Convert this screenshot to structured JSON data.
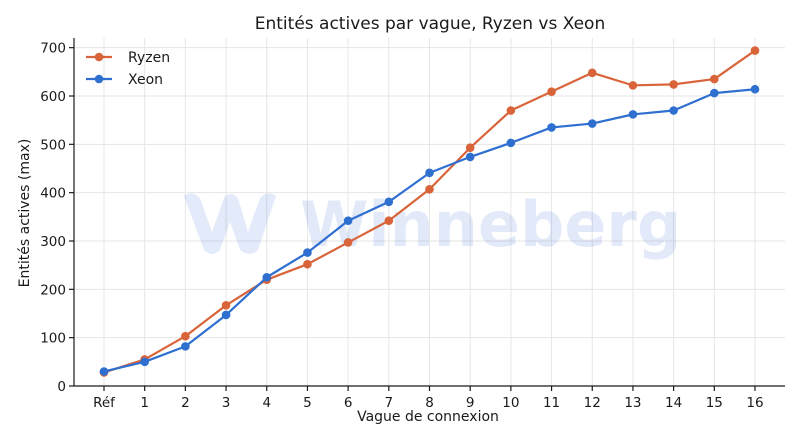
{
  "chart_data": {
    "type": "line",
    "title": "Entités actives par vague, Ryzen vs Xeon",
    "xlabel": "Vague de connexion",
    "ylabel": "Entités actives (max)",
    "categories": [
      "Réf",
      "1",
      "2",
      "3",
      "4",
      "5",
      "6",
      "7",
      "8",
      "9",
      "10",
      "11",
      "12",
      "13",
      "14",
      "15",
      "16"
    ],
    "ylim": [
      0,
      720
    ],
    "yticks": [
      0,
      100,
      200,
      300,
      400,
      500,
      600,
      700
    ],
    "grid": true,
    "legend_position": "top-left",
    "series": [
      {
        "name": "Ryzen",
        "color": "#d9643a",
        "values": [
          28,
          55,
          103,
          167,
          220,
          252,
          297,
          342,
          407,
          493,
          570,
          609,
          648,
          622,
          624,
          635,
          694
        ]
      },
      {
        "name": "Xeon",
        "color": "#2f6fd0",
        "values": [
          30,
          50,
          82,
          147,
          225,
          276,
          342,
          381,
          441,
          474,
          503,
          535,
          543,
          562,
          570,
          606,
          614
        ]
      }
    ]
  },
  "watermark": {
    "text": "Winneberg"
  }
}
